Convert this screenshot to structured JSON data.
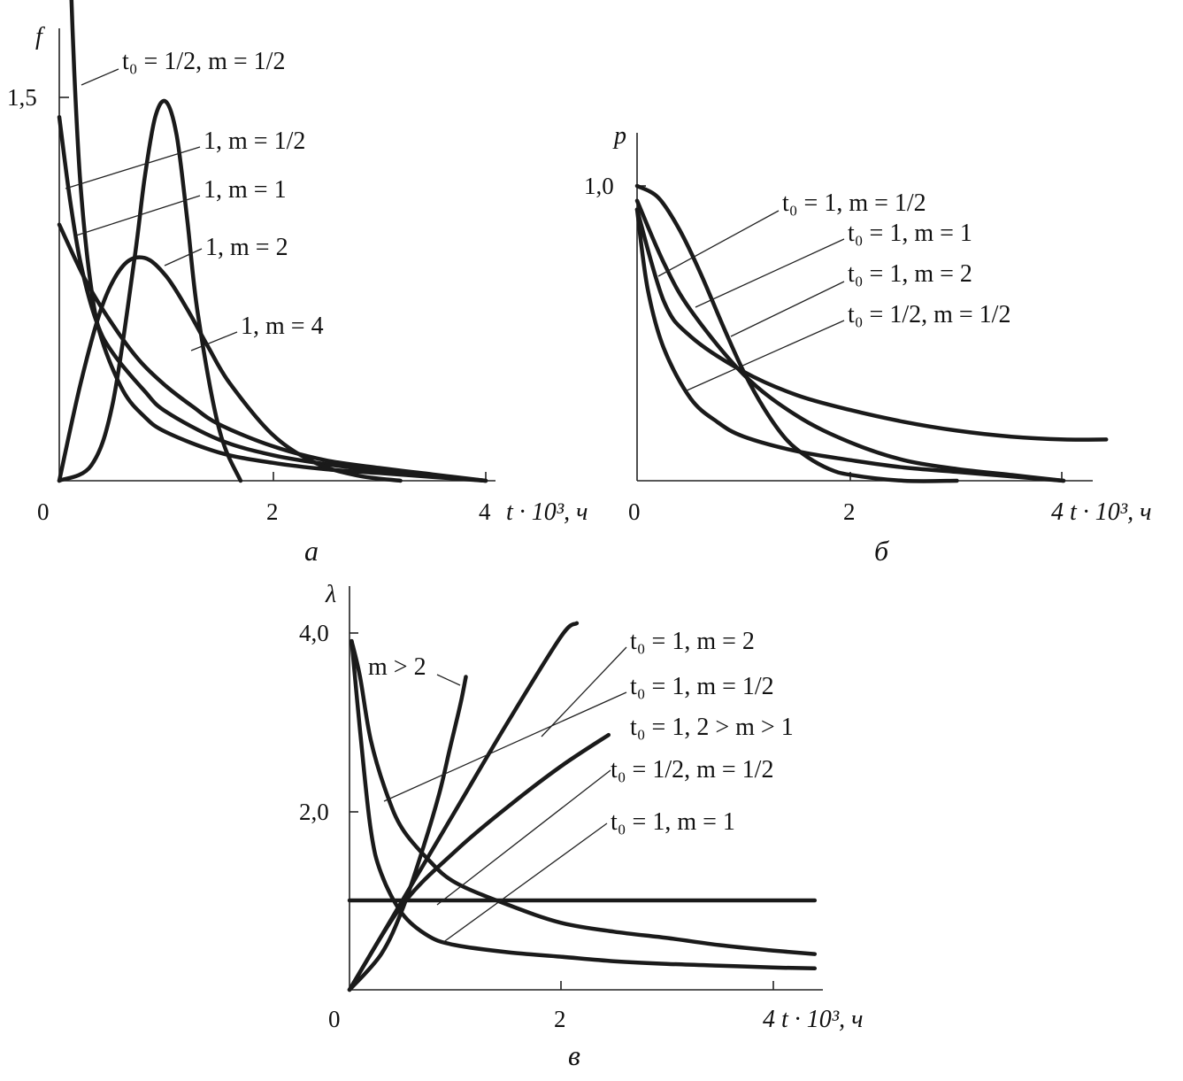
{
  "chart_data": [
    {
      "id": "a",
      "type": "line",
      "caption": "а",
      "ylabel": "f",
      "xlabel": "t · 10³, ч",
      "x_ticks": [
        "0",
        "2",
        "4"
      ],
      "y_ticks": [
        "1,5"
      ],
      "xlim": [
        0,
        4.6
      ],
      "ylim": [
        0,
        2.05
      ],
      "series": [
        {
          "name": "t₀ = 1/2, m = 1/2",
          "x": [
            0.1,
            0.14,
            0.2,
            0.3,
            0.4,
            0.6,
            0.8,
            1.0,
            1.5,
            2.0,
            2.5,
            3.0,
            3.5,
            4.0
          ],
          "y": [
            2.05,
            1.6,
            1.15,
            0.75,
            0.55,
            0.35,
            0.25,
            0.19,
            0.11,
            0.07,
            0.045,
            0.03,
            0.015,
            0.0
          ]
        },
        {
          "name": "1, m = 1/2",
          "x": [
            0.0,
            0.1,
            0.2,
            0.35,
            0.5,
            0.8,
            1.0,
            1.5,
            2.0,
            2.5,
            3.0,
            3.5,
            4.0
          ],
          "y": [
            1.42,
            1.1,
            0.85,
            0.62,
            0.5,
            0.35,
            0.27,
            0.16,
            0.1,
            0.065,
            0.04,
            0.02,
            0.0
          ]
        },
        {
          "name": "1, m = 1",
          "x": [
            0.0,
            0.25,
            0.5,
            0.75,
            1.0,
            1.25,
            1.5,
            2.0,
            2.5,
            3.0,
            3.5,
            4.0
          ],
          "y": [
            1.0,
            0.78,
            0.61,
            0.47,
            0.37,
            0.29,
            0.22,
            0.135,
            0.08,
            0.05,
            0.025,
            0.0
          ]
        },
        {
          "name": "1, m = 2",
          "x": [
            0.0,
            0.2,
            0.4,
            0.6,
            0.8,
            1.0,
            1.2,
            1.4,
            1.6,
            2.0,
            2.4,
            2.8,
            3.2
          ],
          "y": [
            0.0,
            0.38,
            0.68,
            0.84,
            0.87,
            0.8,
            0.67,
            0.52,
            0.38,
            0.18,
            0.07,
            0.02,
            0.0
          ]
        },
        {
          "name": "1, m = 4",
          "x": [
            0.0,
            0.3,
            0.5,
            0.7,
            0.8,
            0.9,
            1.0,
            1.1,
            1.2,
            1.3,
            1.5,
            1.7
          ],
          "y": [
            0.0,
            0.06,
            0.3,
            0.85,
            1.18,
            1.42,
            1.48,
            1.35,
            1.02,
            0.65,
            0.2,
            0.0
          ]
        }
      ]
    },
    {
      "id": "b",
      "type": "line",
      "caption": "б",
      "ylabel": "p",
      "xlabel": "4 t · 10³, ч",
      "x_ticks": [
        "0",
        "2"
      ],
      "y_ticks": [
        "1,0"
      ],
      "xlim": [
        0,
        4.6
      ],
      "ylim": [
        0,
        1.12
      ],
      "series": [
        {
          "name": "t₀ = 1, m = 1/2",
          "x": [
            0.0,
            0.25,
            0.5,
            1.0,
            1.5,
            2.0,
            2.5,
            3.0,
            3.5,
            4.0,
            4.4
          ],
          "y": [
            0.92,
            0.61,
            0.49,
            0.37,
            0.29,
            0.24,
            0.2,
            0.17,
            0.15,
            0.14,
            0.14
          ]
        },
        {
          "name": "t₀ = 1, m = 1",
          "x": [
            0.0,
            0.25,
            0.5,
            1.0,
            1.5,
            2.0,
            2.5,
            3.0,
            3.5,
            4.0
          ],
          "y": [
            0.95,
            0.74,
            0.58,
            0.36,
            0.22,
            0.13,
            0.07,
            0.04,
            0.02,
            0.0
          ]
        },
        {
          "name": "t₀ = 1, m = 2",
          "x": [
            0.0,
            0.2,
            0.4,
            0.6,
            0.8,
            1.0,
            1.2,
            1.4,
            1.6,
            1.8,
            2.0,
            2.5,
            3.0
          ],
          "y": [
            1.0,
            0.96,
            0.85,
            0.7,
            0.53,
            0.37,
            0.24,
            0.14,
            0.08,
            0.04,
            0.02,
            0.0,
            0.0
          ]
        },
        {
          "name": "t₀ = 1/2, m = 1/2",
          "x": [
            0.0,
            0.1,
            0.25,
            0.5,
            0.75,
            1.0,
            1.5,
            2.0,
            2.5,
            3.0,
            3.5,
            4.0
          ],
          "y": [
            0.92,
            0.65,
            0.45,
            0.28,
            0.2,
            0.15,
            0.1,
            0.07,
            0.045,
            0.03,
            0.015,
            0.0
          ]
        }
      ]
    },
    {
      "id": "v",
      "type": "line",
      "caption": "в",
      "ylabel": "λ",
      "xlabel": "4 t · 10³, ч",
      "x_ticks": [
        "0",
        "2"
      ],
      "y_ticks": [
        "2,0",
        "4,0"
      ],
      "xlim": [
        0,
        4.6
      ],
      "ylim": [
        0,
        4.3
      ],
      "series": [
        {
          "name": "m > 2",
          "x": [
            0.0,
            0.3,
            0.5,
            0.7,
            0.85,
            0.95,
            1.05,
            1.1
          ],
          "y": [
            0.0,
            0.4,
            0.9,
            1.6,
            2.2,
            2.7,
            3.2,
            3.5
          ]
        },
        {
          "name": "t₀ = 1, m = 2",
          "x": [
            0.0,
            0.5,
            1.0,
            1.5,
            2.0,
            2.15
          ],
          "y": [
            0.0,
            1.0,
            2.0,
            3.0,
            3.95,
            4.1
          ]
        },
        {
          "name": "t₀ = 1, m = 1/2",
          "x": [
            0.02,
            0.1,
            0.2,
            0.35,
            0.5,
            0.75,
            1.0,
            1.5,
            2.0,
            2.5,
            3.0,
            3.5,
            4.0,
            4.4
          ],
          "y": [
            3.9,
            3.5,
            2.8,
            2.2,
            1.8,
            1.45,
            1.2,
            0.95,
            0.75,
            0.65,
            0.58,
            0.5,
            0.44,
            0.4
          ]
        },
        {
          "name": "t₀ = 1, 2 > m > 1",
          "x": [
            0.0,
            0.5,
            1.0,
            1.5,
            2.0,
            2.45
          ],
          "y": [
            0.0,
            0.95,
            1.55,
            2.05,
            2.5,
            2.85
          ]
        },
        {
          "name": "t₀ = 1/2, m = 1/2",
          "x": [
            0.02,
            0.1,
            0.2,
            0.3,
            0.5,
            0.75,
            1.0,
            1.5,
            2.0,
            2.5,
            3.0,
            3.5,
            4.0,
            4.4
          ],
          "y": [
            3.9,
            2.9,
            1.8,
            1.3,
            0.85,
            0.6,
            0.5,
            0.42,
            0.37,
            0.32,
            0.29,
            0.27,
            0.25,
            0.24
          ]
        },
        {
          "name": "t₀ = 1, m = 1",
          "x": [
            0.0,
            4.4
          ],
          "y": [
            1.0,
            1.0
          ]
        }
      ]
    }
  ]
}
